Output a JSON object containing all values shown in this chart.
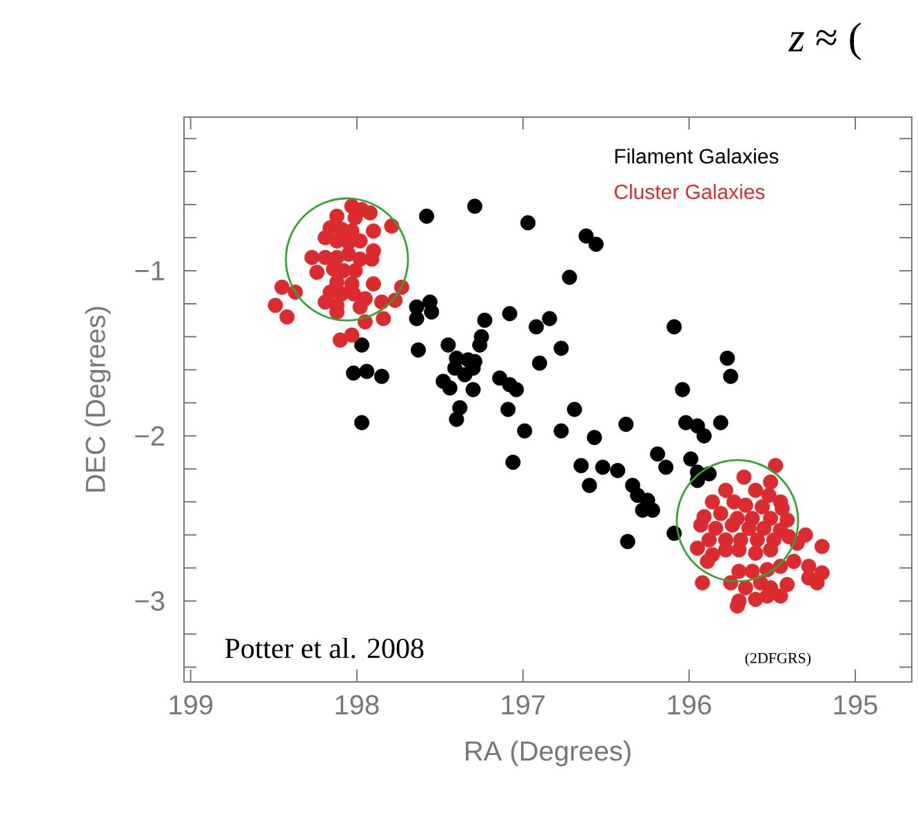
{
  "chart_data": {
    "type": "scatter",
    "xlabel": "RA (Degrees)",
    "ylabel": "DEC (Degrees)",
    "xlim": [
      199.04,
      194.66
    ],
    "ylim": [
      -3.49,
      -0.07
    ],
    "xticks": [
      199,
      198,
      197,
      196,
      195
    ],
    "yticks": [
      {
        "value": -3.4,
        "label": null
      },
      {
        "value": -3.2,
        "label": null
      },
      {
        "value": -3,
        "label": "−3"
      },
      {
        "value": -2.8,
        "label": null
      },
      {
        "value": -2.6,
        "label": null
      },
      {
        "value": -2.4,
        "label": null
      },
      {
        "value": -2.2,
        "label": null
      },
      {
        "value": -2,
        "label": "−2"
      },
      {
        "value": -1.8,
        "label": null
      },
      {
        "value": -1.6,
        "label": null
      },
      {
        "value": -1.4,
        "label": null
      },
      {
        "value": -1.2,
        "label": null
      },
      {
        "value": -1,
        "label": "−1"
      },
      {
        "value": -0.8,
        "label": null
      },
      {
        "value": -0.6,
        "label": null
      },
      {
        "value": -0.4,
        "label": null
      },
      {
        "value": -0.2,
        "label": null
      }
    ],
    "marker": "circle",
    "legend": "top right",
    "annotations": [
      "Potter et al. 2008",
      "(2DFGRS)",
      "*z* ≈ ("
    ],
    "series": [
      {
        "name": "Filament Galaxies",
        "color": "#000000",
        "x": [
          197.58,
          197.29,
          196.97,
          196.62,
          196.56,
          196.72,
          197.56,
          197.64,
          197.64,
          197.55,
          197.23,
          197.08,
          196.92,
          196.84,
          196.09,
          197.63,
          197.45,
          197.25,
          197.26,
          197.4,
          197.33,
          197.41,
          197.3,
          197.35,
          197.29,
          197.48,
          197.44,
          197.3,
          196.9,
          196.77,
          197.97,
          198.02,
          197.94,
          197.85,
          197.14,
          197.08,
          197.04,
          197.38,
          197.4,
          197.09,
          196.99,
          196.69,
          196.77,
          196.57,
          196.38,
          197.97,
          197.06,
          196.65,
          196.52,
          196.43,
          196.6,
          196.34,
          196.31,
          196.25,
          196.28,
          196.22,
          196.19,
          196.14,
          196.37,
          196.09,
          195.77,
          195.75,
          196.04,
          196.02,
          195.95,
          195.81,
          195.91,
          195.99,
          195.95,
          195.95,
          195.88
        ],
        "values": [
          -0.67,
          -0.61,
          -0.71,
          -0.79,
          -0.84,
          -1.04,
          -1.19,
          -1.22,
          -1.29,
          -1.25,
          -1.3,
          -1.26,
          -1.34,
          -1.29,
          -1.34,
          -1.48,
          -1.45,
          -1.4,
          -1.45,
          -1.53,
          -1.54,
          -1.59,
          -1.59,
          -1.63,
          -1.55,
          -1.67,
          -1.71,
          -1.72,
          -1.56,
          -1.47,
          -1.45,
          -1.62,
          -1.61,
          -1.64,
          -1.65,
          -1.69,
          -1.72,
          -1.83,
          -1.9,
          -1.84,
          -1.97,
          -1.84,
          -1.97,
          -2.01,
          -1.93,
          -1.92,
          -2.16,
          -2.18,
          -2.19,
          -2.21,
          -2.3,
          -2.3,
          -2.36,
          -2.39,
          -2.45,
          -2.45,
          -2.11,
          -2.19,
          -2.64,
          -2.59,
          -1.53,
          -1.64,
          -1.72,
          -1.92,
          -1.94,
          -1.92,
          -2.0,
          -2.14,
          -2.22,
          -2.27,
          -2.23
        ]
      },
      {
        "name": "Cluster Galaxies",
        "color": "#dc2b2f",
        "x": [
          198.03,
          197.97,
          197.92,
          198.12,
          198.01,
          197.9,
          197.79,
          198.16,
          198.09,
          198.03,
          198.19,
          198.12,
          198.05,
          197.98,
          197.9,
          198.27,
          198.19,
          198.12,
          198.05,
          197.98,
          197.91,
          198.24,
          198.14,
          198.08,
          198.01,
          198.12,
          198.03,
          197.9,
          197.73,
          198.16,
          198.09,
          198.02,
          197.95,
          198.19,
          198.12,
          197.98,
          197.85,
          197.77,
          198.45,
          198.37,
          198.49,
          198.42,
          198.1,
          198.03,
          198.12,
          197.95,
          197.84,
          195.48,
          195.67,
          195.51,
          195.78,
          195.6,
          195.52,
          195.45,
          195.86,
          195.73,
          195.66,
          195.56,
          195.44,
          195.91,
          195.81,
          195.71,
          195.62,
          195.51,
          195.41,
          195.93,
          195.84,
          195.74,
          195.64,
          195.55,
          195.45,
          195.88,
          195.78,
          195.69,
          195.59,
          195.49,
          195.4,
          195.3,
          195.95,
          195.86,
          195.78,
          195.7,
          195.6,
          195.51,
          195.35,
          195.2,
          195.89,
          195.7,
          195.62,
          195.53,
          195.45,
          195.37,
          195.28,
          195.2,
          195.92,
          195.75,
          195.66,
          195.57,
          195.51,
          195.41,
          195.28,
          195.23,
          195.7,
          195.6,
          195.53,
          195.45,
          195.71
        ],
        "values": [
          -0.61,
          -0.63,
          -0.65,
          -0.67,
          -0.68,
          -0.76,
          -0.73,
          -0.74,
          -0.75,
          -0.76,
          -0.8,
          -0.82,
          -0.83,
          -0.82,
          -0.88,
          -0.92,
          -0.92,
          -0.92,
          -0.9,
          -0.93,
          -0.93,
          -1.01,
          -0.99,
          -1.0,
          -1.0,
          -1.07,
          -1.08,
          -1.08,
          -1.1,
          -1.13,
          -1.14,
          -1.14,
          -1.17,
          -1.19,
          -1.21,
          -1.22,
          -1.19,
          -1.18,
          -1.1,
          -1.13,
          -1.21,
          -1.28,
          -1.42,
          -1.39,
          -1.25,
          -1.31,
          -1.29,
          -2.18,
          -2.25,
          -2.28,
          -2.33,
          -2.33,
          -2.36,
          -2.4,
          -2.4,
          -2.4,
          -2.42,
          -2.43,
          -2.44,
          -2.49,
          -2.47,
          -2.5,
          -2.5,
          -2.5,
          -2.51,
          -2.54,
          -2.56,
          -2.54,
          -2.56,
          -2.56,
          -2.57,
          -2.63,
          -2.63,
          -2.63,
          -2.63,
          -2.63,
          -2.61,
          -2.6,
          -2.68,
          -2.72,
          -2.69,
          -2.69,
          -2.71,
          -2.69,
          -2.65,
          -2.67,
          -2.76,
          -2.82,
          -2.82,
          -2.81,
          -2.79,
          -2.76,
          -2.79,
          -2.83,
          -2.89,
          -2.89,
          -2.92,
          -2.89,
          -2.92,
          -2.9,
          -2.86,
          -2.89,
          -3.0,
          -2.99,
          -2.97,
          -2.97,
          -3.03
        ]
      }
    ]
  }
}
